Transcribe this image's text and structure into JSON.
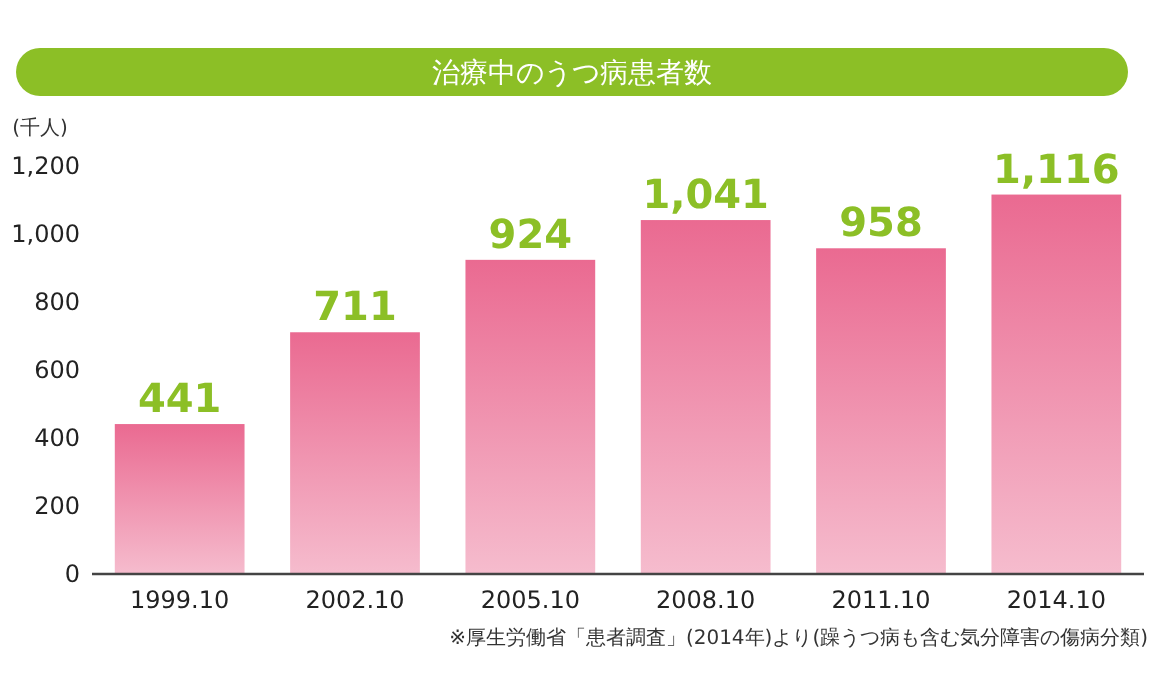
{
  "chart_data": {
    "type": "bar",
    "title": "治療中のうつ病患者数",
    "ylabel": "(千人)",
    "categories": [
      "1999.10",
      "2002.10",
      "2005.10",
      "2008.10",
      "2011.10",
      "2014.10"
    ],
    "series": [
      {
        "color": "#ea6a91",
        "values": [
          441,
          711,
          924,
          1041,
          958,
          1116
        ],
        "value_labels": [
          "441",
          "711",
          "924",
          "1,041",
          "958",
          "1,116"
        ]
      }
    ],
    "ylim": [
      0,
      1200
    ],
    "yticks": [
      {
        "value": 0,
        "label": "0"
      },
      {
        "value": 200,
        "label": "200"
      },
      {
        "value": 400,
        "label": "400"
      },
      {
        "value": 600,
        "label": "600"
      },
      {
        "value": 800,
        "label": "800"
      },
      {
        "value": 1000,
        "label": "1,000"
      },
      {
        "value": 1200,
        "label": "1,200"
      }
    ],
    "annotations": [
      "※厚生労働省「患者調査」(2014年)より(躁うつ病も含む気分障害の傷病分類)"
    ]
  }
}
